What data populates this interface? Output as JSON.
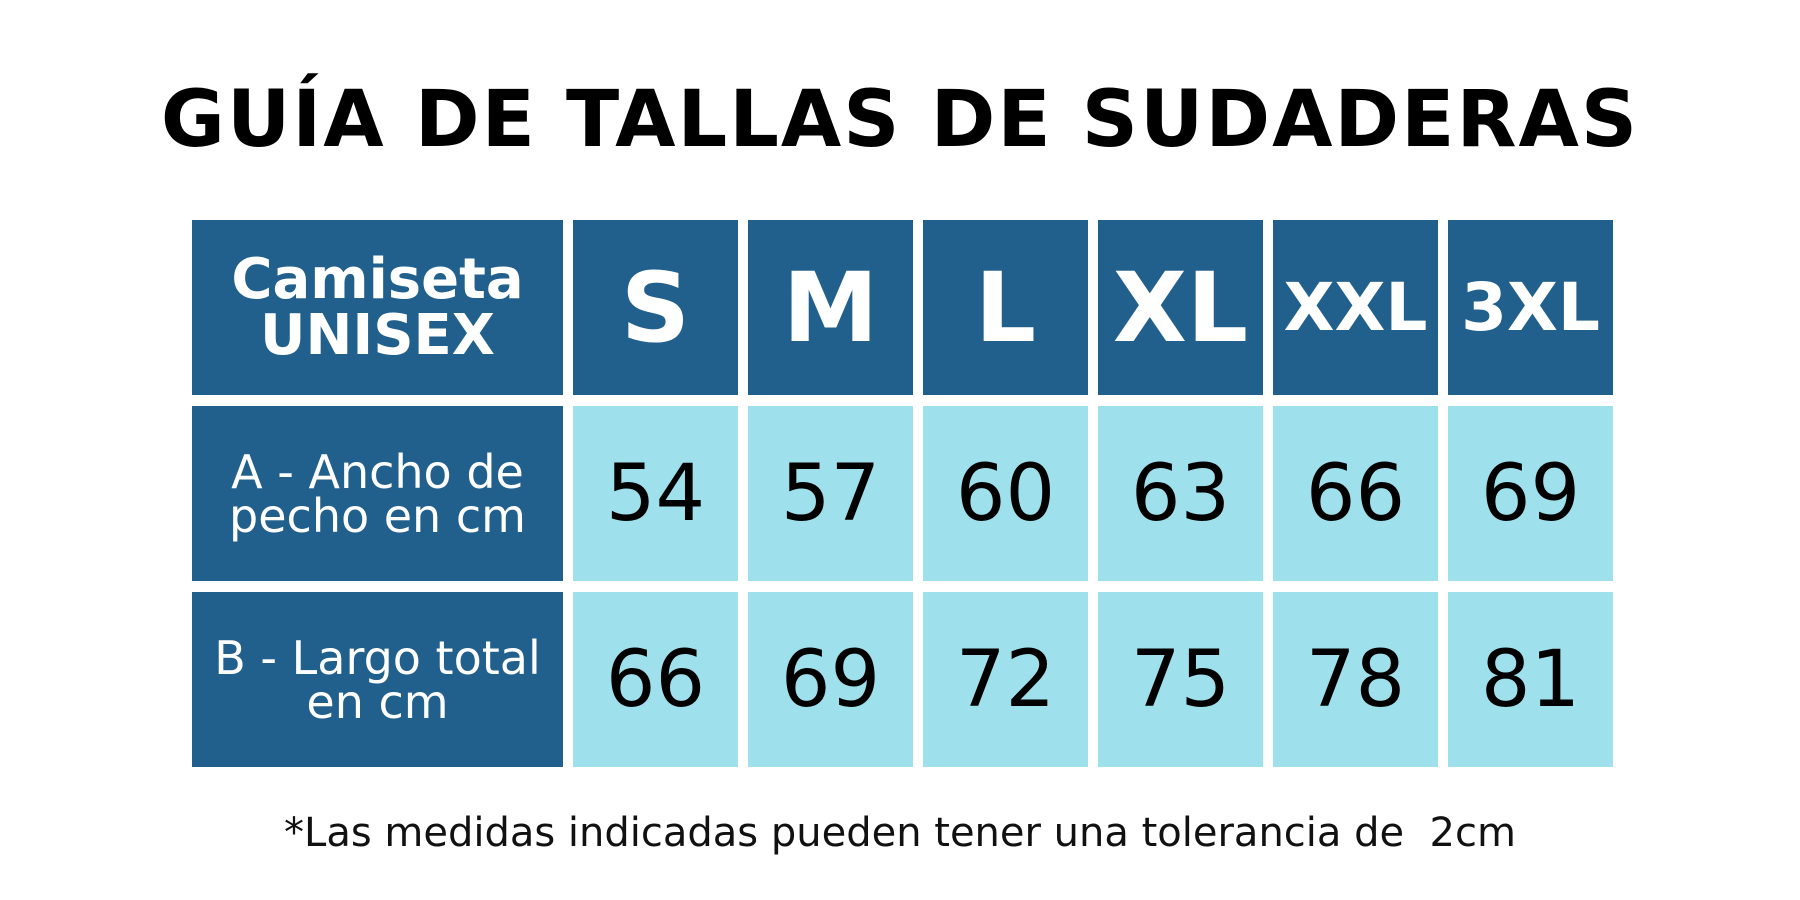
{
  "title": "GUÍA DE TALLAS DE SUDADERAS",
  "table": {
    "corner_line1": "Camiseta",
    "corner_line2": "UNISEX",
    "sizes": [
      "S",
      "M",
      "L",
      "XL",
      "XXL",
      "3XL"
    ],
    "rows": [
      {
        "label": "A - Ancho de pecho en cm",
        "values": [
          "54",
          "57",
          "60",
          "63",
          "66",
          "69"
        ]
      },
      {
        "label": "B - Largo total en cm",
        "values": [
          "66",
          "69",
          "72",
          "75",
          "78",
          "81"
        ]
      }
    ]
  },
  "footnote": "*Las medidas indicadas pueden tener una tolerancia de  2cm",
  "colors": {
    "header_bg": "#21608c",
    "value_bg": "#9ee0ec",
    "text_dark": "#000000",
    "text_light": "#ffffff"
  }
}
